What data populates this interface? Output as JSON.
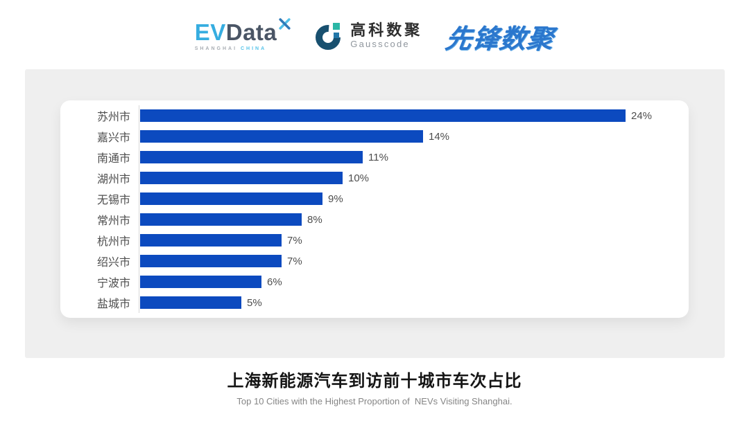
{
  "header": {
    "evdata": {
      "ev": "EV",
      "data": "Data",
      "sub_left": "SHANGHAI",
      "sub_right": "CHINA"
    },
    "gausscode": {
      "cn": "高科数聚",
      "en": "Gausscode"
    },
    "pioneer": {
      "text": "先锋数聚"
    }
  },
  "chart_data": {
    "type": "bar",
    "orientation": "horizontal",
    "title": "上海新能源汽车到访前十城市车次占比",
    "subtitle": "Top 10 Cities with the Highest Proportion of  NEVs Visiting Shanghai.",
    "categories": [
      "苏州市",
      "嘉兴市",
      "南通市",
      "湖州市",
      "无锡市",
      "常州市",
      "杭州市",
      "绍兴市",
      "宁波市",
      "盐城市"
    ],
    "values": [
      24,
      14,
      11,
      10,
      9,
      8,
      7,
      7,
      6,
      5
    ],
    "value_labels": [
      "24%",
      "14%",
      "11%",
      "10%",
      "9%",
      "8%",
      "7%",
      "7%",
      "6%",
      "5%"
    ],
    "xlim": [
      0,
      24
    ],
    "bar_color": "#0c4abf",
    "axis_color": "#d8d8d8",
    "label_color": "#4d4d4d",
    "grid": "off",
    "legend": "none"
  }
}
